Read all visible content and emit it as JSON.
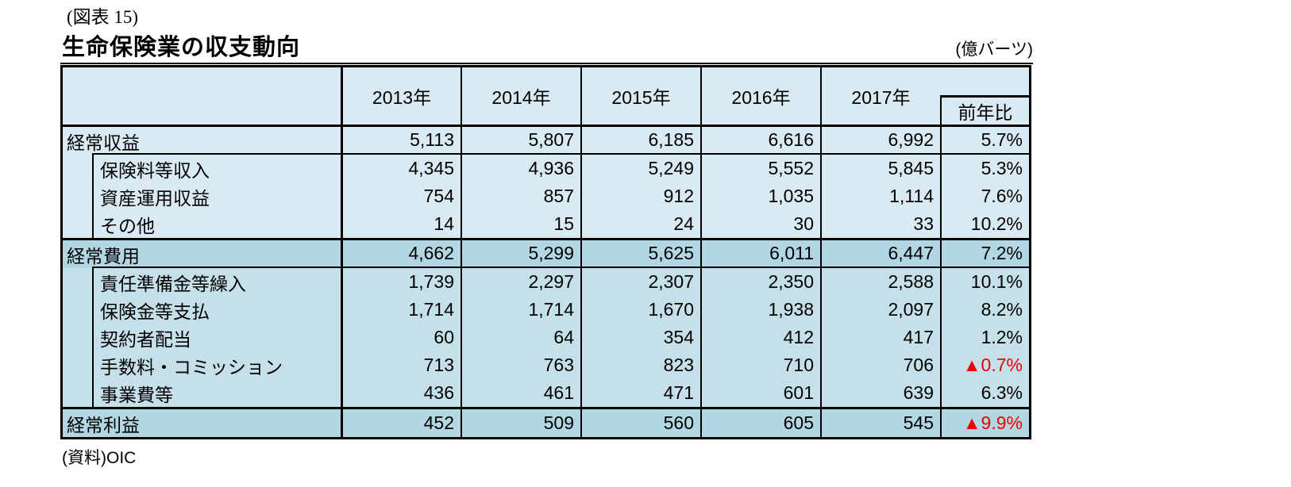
{
  "page": {
    "figure_label": "(図表 15)",
    "title": "生命保険業の収支動向",
    "unit_note": "(億バーツ)",
    "source_note": "(資料)OIC"
  },
  "table": {
    "col_headers": [
      "2013年",
      "2014年",
      "2015年",
      "2016年",
      "2017年"
    ],
    "yoy_header": "前年比",
    "rows": [
      {
        "label": "経常収益",
        "level": "parent",
        "tone": "light",
        "values": [
          "5,113",
          "5,807",
          "6,185",
          "6,616",
          "6,992"
        ],
        "yoy": "5.7%",
        "yoy_negative": false
      },
      {
        "label": "保険料等収入",
        "level": "sub",
        "tone": "light",
        "values": [
          "4,345",
          "4,936",
          "5,249",
          "5,552",
          "5,845"
        ],
        "yoy": "5.3%",
        "yoy_negative": false
      },
      {
        "label": "資産運用収益",
        "level": "sub",
        "tone": "light",
        "values": [
          "754",
          "857",
          "912",
          "1,035",
          "1,114"
        ],
        "yoy": "7.6%",
        "yoy_negative": false
      },
      {
        "label": "その他",
        "level": "sub",
        "tone": "light",
        "values": [
          "14",
          "15",
          "24",
          "30",
          "33"
        ],
        "yoy": "10.2%",
        "yoy_negative": false
      },
      {
        "label": "経常費用",
        "level": "parent",
        "tone": "dark",
        "values": [
          "4,662",
          "5,299",
          "5,625",
          "6,011",
          "6,447"
        ],
        "yoy": "7.2%",
        "yoy_negative": false
      },
      {
        "label": "責任準備金等繰入",
        "level": "sub",
        "tone": "medium",
        "values": [
          "1,739",
          "2,297",
          "2,307",
          "2,350",
          "2,588"
        ],
        "yoy": "10.1%",
        "yoy_negative": false
      },
      {
        "label": "保険金等支払",
        "level": "sub",
        "tone": "medium",
        "values": [
          "1,714",
          "1,714",
          "1,670",
          "1,938",
          "2,097"
        ],
        "yoy": "8.2%",
        "yoy_negative": false
      },
      {
        "label": "契約者配当",
        "level": "sub",
        "tone": "medium",
        "values": [
          "60",
          "64",
          "354",
          "412",
          "417"
        ],
        "yoy": "1.2%",
        "yoy_negative": false
      },
      {
        "label": "手数料・コミッション",
        "level": "sub",
        "tone": "medium",
        "values": [
          "713",
          "763",
          "823",
          "710",
          "706"
        ],
        "yoy": "▲0.7%",
        "yoy_negative": true
      },
      {
        "label": "事業費等",
        "level": "sub",
        "tone": "medium",
        "values": [
          "436",
          "461",
          "471",
          "601",
          "639"
        ],
        "yoy": "6.3%",
        "yoy_negative": false
      },
      {
        "label": "経常利益",
        "level": "parent",
        "tone": "dark",
        "values": [
          "452",
          "509",
          "560",
          "605",
          "545"
        ],
        "yoy": "▲9.9%",
        "yoy_negative": true
      }
    ],
    "colors": {
      "light": "#daeaf2",
      "medium": "#c6e0ea",
      "dark": "#b2d7e3",
      "negative_red": "#ee0000"
    }
  }
}
